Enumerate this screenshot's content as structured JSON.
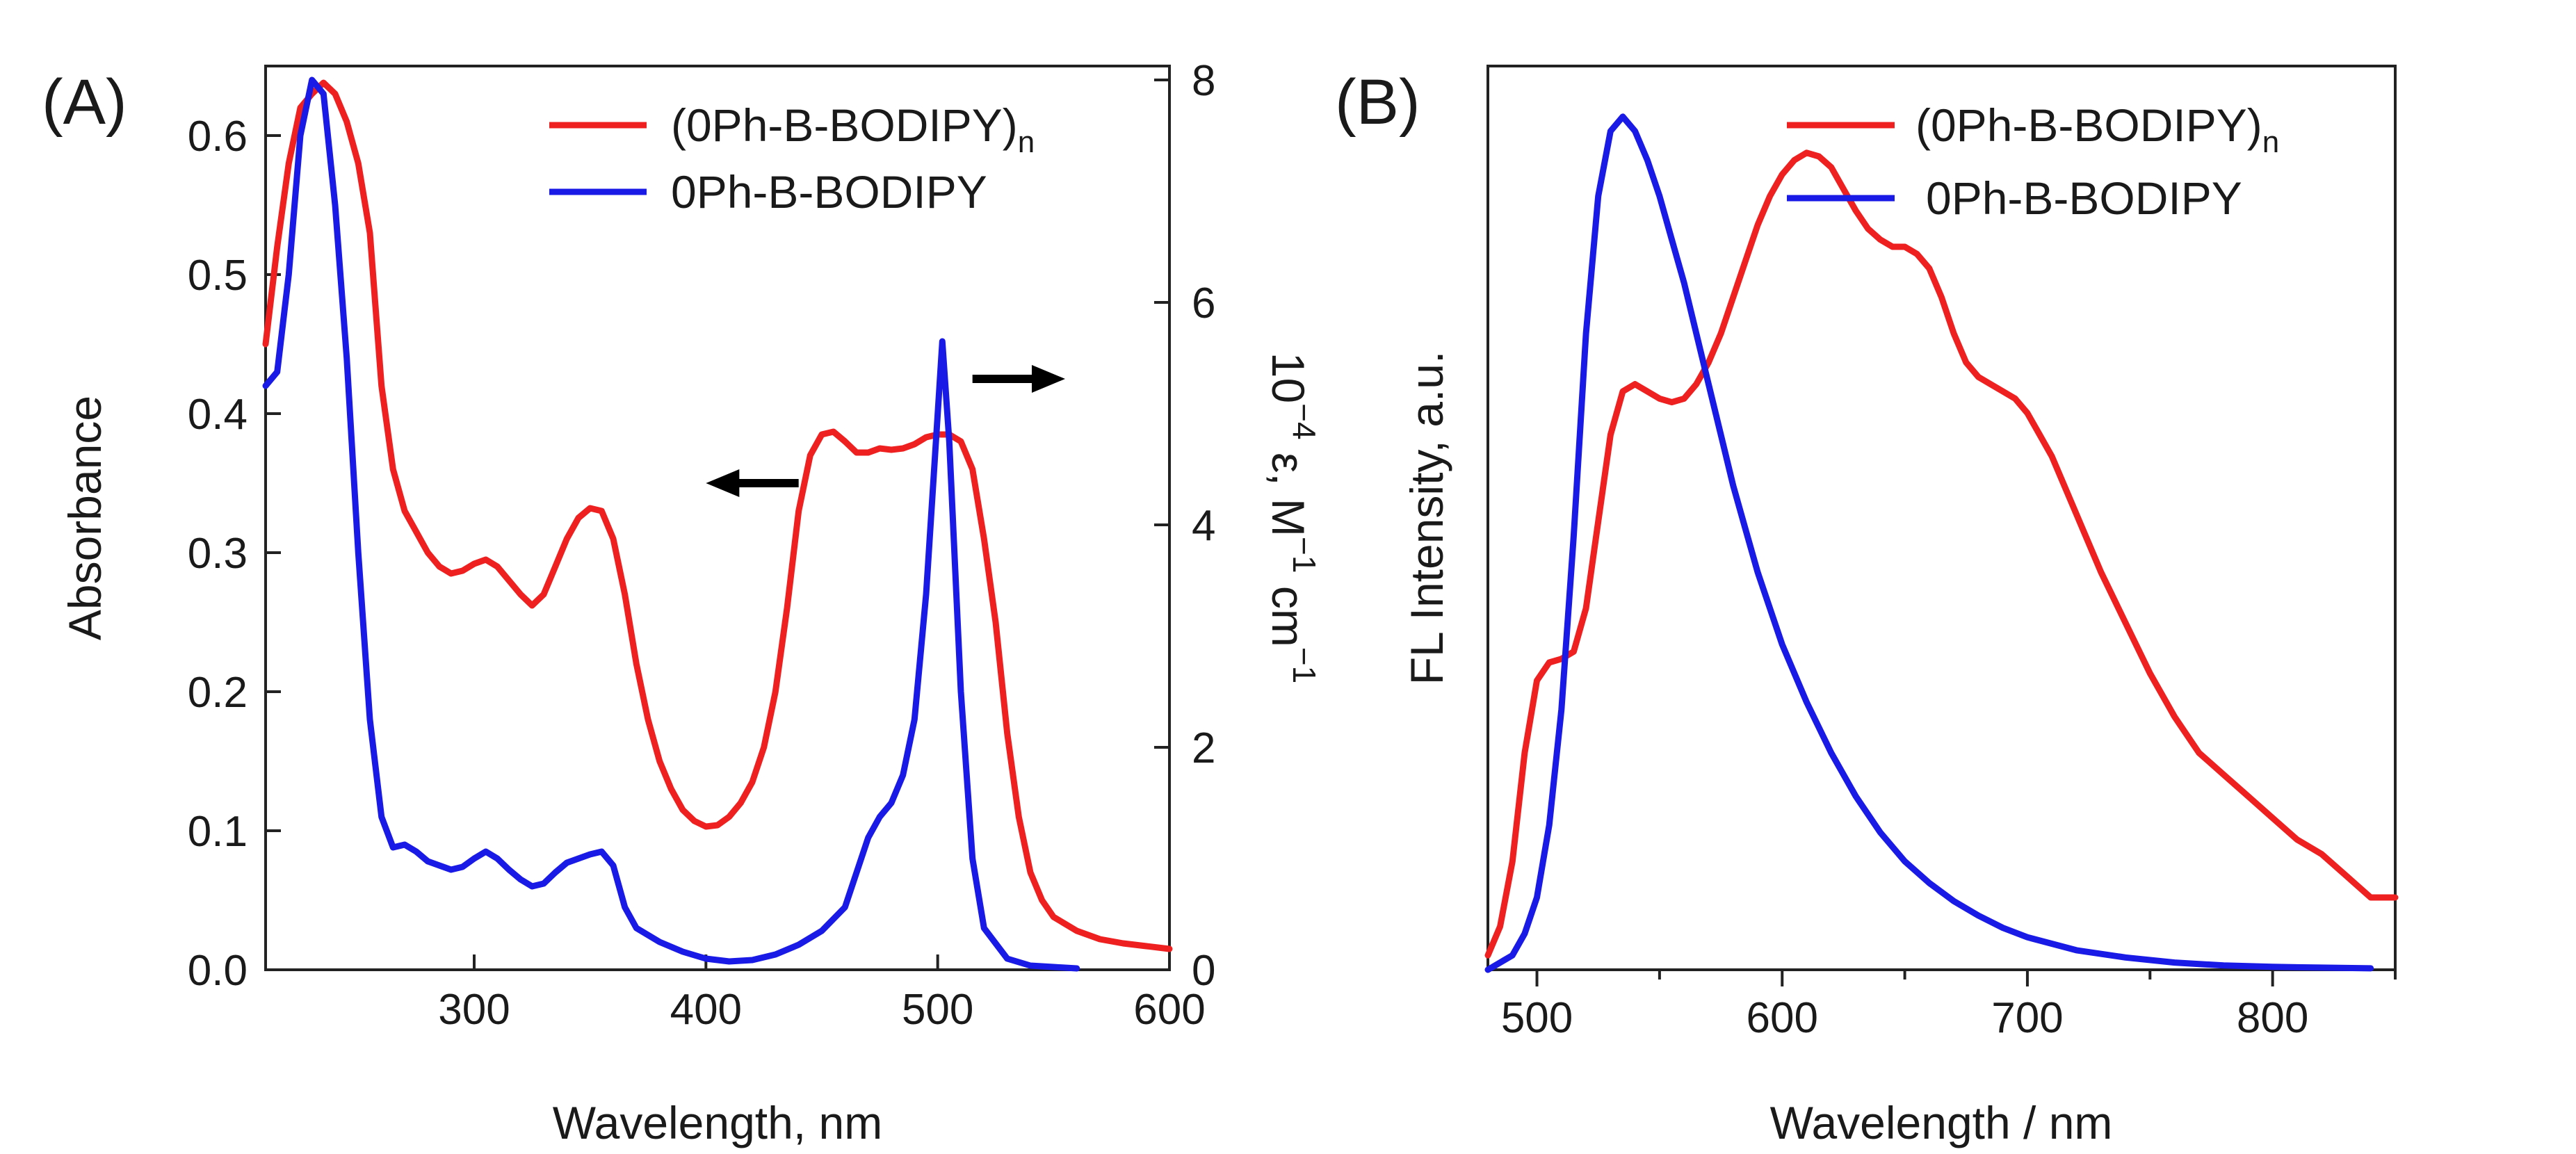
{
  "colors": {
    "red": "#ee2020",
    "blue": "#1a1ae6",
    "arrow": "#000000",
    "axis": "#222222"
  },
  "chart_data": [
    {
      "type": "line",
      "panel_label": "(A)",
      "xlabel": "Wavelength, nm",
      "ylabel": "Absorbance",
      "y2label_parts": {
        "base1": "10",
        "exp1": "−4",
        "mid": " ε, M",
        "exp2": "−1",
        "mid2": " cm",
        "exp3": "−1"
      },
      "xlim": [
        210,
        600
      ],
      "ylim": [
        0,
        0.65
      ],
      "y2lim": [
        0,
        8.125
      ],
      "xticks": [
        300,
        400,
        500,
        600
      ],
      "yticks": [
        0.0,
        0.1,
        0.2,
        0.3,
        0.4,
        0.5,
        0.6
      ],
      "ytick_labels": [
        "0.0",
        "0.1",
        "0.2",
        "0.3",
        "0.4",
        "0.5",
        "0.6"
      ],
      "y2ticks": [
        0,
        2,
        4,
        6,
        8
      ],
      "legend": {
        "placement": "top-right"
      },
      "arrows": [
        {
          "name": "left-arrow",
          "direction": "left",
          "points_to_axis": "y",
          "x": [
            400,
            440
          ],
          "y": 0.35
        },
        {
          "name": "right-arrow",
          "direction": "right",
          "points_to_axis": "y2",
          "x": [
            515,
            555
          ],
          "y": 0.425
        }
      ],
      "series": [
        {
          "name": "(0Ph-B-BODIPY)",
          "name_sub": "n",
          "color": "#ee2020",
          "axis": "y",
          "x": [
            210,
            215,
            220,
            225,
            230,
            235,
            240,
            245,
            250,
            255,
            260,
            265,
            270,
            275,
            280,
            285,
            290,
            295,
            300,
            305,
            310,
            315,
            320,
            325,
            330,
            335,
            340,
            345,
            350,
            355,
            360,
            365,
            370,
            375,
            380,
            385,
            390,
            395,
            400,
            405,
            410,
            415,
            420,
            425,
            430,
            435,
            440,
            445,
            450,
            455,
            460,
            465,
            470,
            475,
            480,
            485,
            490,
            495,
            500,
            505,
            510,
            515,
            520,
            525,
            530,
            535,
            540,
            545,
            550,
            560,
            570,
            580,
            590,
            600
          ],
          "y": [
            0.45,
            0.52,
            0.58,
            0.62,
            0.63,
            0.638,
            0.63,
            0.61,
            0.58,
            0.53,
            0.42,
            0.36,
            0.33,
            0.315,
            0.3,
            0.29,
            0.285,
            0.287,
            0.292,
            0.295,
            0.29,
            0.28,
            0.27,
            0.262,
            0.27,
            0.29,
            0.31,
            0.325,
            0.332,
            0.33,
            0.31,
            0.27,
            0.22,
            0.18,
            0.15,
            0.13,
            0.115,
            0.107,
            0.103,
            0.104,
            0.11,
            0.12,
            0.135,
            0.16,
            0.2,
            0.26,
            0.33,
            0.37,
            0.385,
            0.387,
            0.38,
            0.372,
            0.372,
            0.375,
            0.374,
            0.375,
            0.378,
            0.383,
            0.385,
            0.385,
            0.38,
            0.36,
            0.31,
            0.25,
            0.17,
            0.11,
            0.07,
            0.05,
            0.038,
            0.028,
            0.022,
            0.019,
            0.017,
            0.015
          ]
        },
        {
          "name": "0Ph-B-BODIPY",
          "color": "#1a1ae6",
          "axis": "y",
          "x": [
            210,
            215,
            220,
            225,
            230,
            235,
            240,
            245,
            250,
            255,
            260,
            265,
            270,
            275,
            280,
            285,
            290,
            295,
            300,
            305,
            310,
            315,
            320,
            325,
            330,
            335,
            340,
            345,
            350,
            355,
            360,
            365,
            370,
            375,
            380,
            390,
            400,
            410,
            420,
            430,
            440,
            450,
            460,
            465,
            470,
            475,
            480,
            485,
            490,
            495,
            500,
            502,
            505,
            510,
            515,
            520,
            530,
            540,
            550,
            560
          ],
          "y": [
            0.42,
            0.43,
            0.5,
            0.6,
            0.64,
            0.63,
            0.55,
            0.44,
            0.3,
            0.18,
            0.11,
            0.088,
            0.09,
            0.085,
            0.078,
            0.075,
            0.072,
            0.074,
            0.08,
            0.085,
            0.08,
            0.072,
            0.065,
            0.06,
            0.062,
            0.07,
            0.077,
            0.08,
            0.083,
            0.085,
            0.075,
            0.045,
            0.03,
            0.025,
            0.02,
            0.013,
            0.008,
            0.006,
            0.007,
            0.011,
            0.018,
            0.028,
            0.045,
            0.07,
            0.095,
            0.11,
            0.12,
            0.14,
            0.18,
            0.27,
            0.4,
            0.452,
            0.38,
            0.2,
            0.08,
            0.03,
            0.008,
            0.003,
            0.002,
            0.001
          ]
        }
      ]
    },
    {
      "type": "line",
      "panel_label": "(B)",
      "xlabel": "Wavelength / nm",
      "ylabel": "FL Intensity, a.u.",
      "xlim": [
        480,
        850
      ],
      "ylim": [
        0,
        1.25
      ],
      "xticks": [
        500,
        600,
        700,
        800
      ],
      "minor_xticks": [
        550,
        650,
        750,
        850
      ],
      "yticks": [],
      "legend": {
        "placement": "top-right"
      },
      "series": [
        {
          "name": "(0Ph-B-BODIPY)",
          "name_sub": "n",
          "color": "#ee2020",
          "x": [
            480,
            485,
            490,
            495,
            500,
            505,
            510,
            515,
            520,
            525,
            530,
            535,
            540,
            545,
            550,
            555,
            560,
            565,
            570,
            575,
            580,
            585,
            590,
            595,
            600,
            605,
            610,
            615,
            620,
            625,
            630,
            635,
            640,
            645,
            650,
            655,
            660,
            665,
            670,
            675,
            680,
            685,
            690,
            695,
            700,
            705,
            710,
            720,
            730,
            740,
            750,
            760,
            770,
            780,
            790,
            800,
            810,
            820,
            830,
            840,
            850
          ],
          "y": [
            0.02,
            0.06,
            0.15,
            0.3,
            0.4,
            0.425,
            0.43,
            0.44,
            0.5,
            0.62,
            0.74,
            0.8,
            0.81,
            0.8,
            0.79,
            0.785,
            0.79,
            0.81,
            0.84,
            0.88,
            0.93,
            0.98,
            1.03,
            1.07,
            1.1,
            1.12,
            1.13,
            1.125,
            1.11,
            1.08,
            1.05,
            1.025,
            1.01,
            1.0,
            1.0,
            0.99,
            0.97,
            0.93,
            0.88,
            0.84,
            0.82,
            0.81,
            0.8,
            0.79,
            0.77,
            0.74,
            0.71,
            0.63,
            0.55,
            0.48,
            0.41,
            0.35,
            0.3,
            0.27,
            0.24,
            0.21,
            0.18,
            0.16,
            0.13,
            0.1,
            0.1
          ]
        },
        {
          "name": "0Ph-B-BODIPY",
          "color": "#1a1ae6",
          "x": [
            480,
            485,
            490,
            495,
            500,
            505,
            510,
            515,
            520,
            525,
            530,
            535,
            540,
            545,
            550,
            555,
            560,
            565,
            570,
            575,
            580,
            585,
            590,
            600,
            610,
            620,
            630,
            640,
            650,
            660,
            670,
            680,
            690,
            700,
            720,
            740,
            760,
            780,
            800,
            820,
            840
          ],
          "y": [
            0.0,
            0.01,
            0.02,
            0.05,
            0.1,
            0.2,
            0.36,
            0.6,
            0.88,
            1.07,
            1.16,
            1.18,
            1.16,
            1.12,
            1.07,
            1.01,
            0.95,
            0.88,
            0.81,
            0.74,
            0.67,
            0.61,
            0.55,
            0.45,
            0.37,
            0.3,
            0.24,
            0.19,
            0.15,
            0.12,
            0.095,
            0.075,
            0.058,
            0.045,
            0.027,
            0.017,
            0.01,
            0.006,
            0.004,
            0.003,
            0.002
          ]
        }
      ]
    }
  ]
}
